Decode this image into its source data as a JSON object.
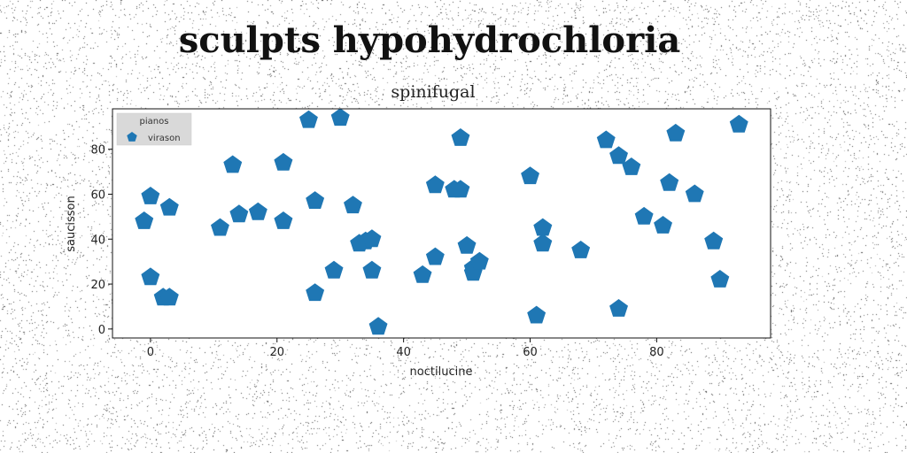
{
  "title": "sculpts hypohydrochloria",
  "chart_data": {
    "type": "scatter",
    "subtitle": "spinifugal",
    "xlabel": "noctilucine",
    "ylabel": "saucisson",
    "xlim": [
      -6,
      98
    ],
    "ylim": [
      -4,
      98
    ],
    "xticks": [
      0,
      20,
      40,
      60,
      80
    ],
    "yticks": [
      0,
      20,
      40,
      60,
      80
    ],
    "grid": false,
    "legend": {
      "title": "pianos",
      "placement": "top-left"
    },
    "marker_color": "#1f77b4",
    "series": [
      {
        "name": "virason",
        "marker": "pentagon",
        "points": [
          [
            -1,
            48
          ],
          [
            0,
            59
          ],
          [
            0,
            23
          ],
          [
            2,
            14
          ],
          [
            3,
            14
          ],
          [
            3,
            54
          ],
          [
            11,
            45
          ],
          [
            13,
            73
          ],
          [
            14,
            51
          ],
          [
            17,
            52
          ],
          [
            21,
            74
          ],
          [
            21,
            48
          ],
          [
            25,
            93
          ],
          [
            26,
            57
          ],
          [
            26,
            16
          ],
          [
            29,
            26
          ],
          [
            30,
            94
          ],
          [
            32,
            55
          ],
          [
            33,
            38
          ],
          [
            34,
            39
          ],
          [
            35,
            40
          ],
          [
            35,
            26
          ],
          [
            36,
            1
          ],
          [
            43,
            24
          ],
          [
            45,
            64
          ],
          [
            45,
            32
          ],
          [
            48,
            62
          ],
          [
            49,
            62
          ],
          [
            49,
            85
          ],
          [
            50,
            37
          ],
          [
            51,
            27
          ],
          [
            51,
            25
          ],
          [
            52,
            30
          ],
          [
            60,
            68
          ],
          [
            61,
            6
          ],
          [
            62,
            45
          ],
          [
            62,
            38
          ],
          [
            68,
            35
          ],
          [
            72,
            84
          ],
          [
            74,
            77
          ],
          [
            74,
            9
          ],
          [
            76,
            72
          ],
          [
            78,
            50
          ],
          [
            81,
            46
          ],
          [
            82,
            65
          ],
          [
            83,
            87
          ],
          [
            86,
            60
          ],
          [
            89,
            39
          ],
          [
            90,
            22
          ],
          [
            93,
            91
          ]
        ]
      }
    ]
  }
}
